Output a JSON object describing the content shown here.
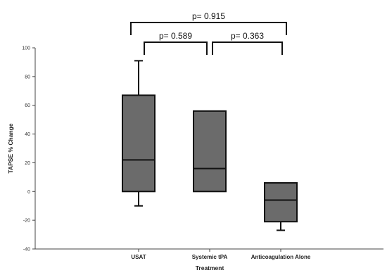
{
  "chart_data": {
    "type": "box",
    "xlabel": "Treatment",
    "ylabel": "TAPSE % Change",
    "ylim": [
      -40,
      100
    ],
    "yticks": [
      -40,
      -20,
      0,
      20,
      40,
      60,
      80,
      100
    ],
    "categories": [
      "USAT",
      "Systemic tPA",
      "Anticoagulation Alone"
    ],
    "boxes": [
      {
        "category": "USAT",
        "whisker_low": -10,
        "q1": 0,
        "median": 22,
        "q3": 67,
        "whisker_high": 91
      },
      {
        "category": "Systemic tPA",
        "whisker_low": 0,
        "q1": 0,
        "median": 16,
        "q3": 56,
        "whisker_high": 56
      },
      {
        "category": "Anticoagulation Alone",
        "whisker_low": -27,
        "q1": -21,
        "median": -6,
        "q3": 6,
        "whisker_high": 6
      }
    ],
    "comparisons": [
      {
        "from": "USAT",
        "to": "Anticoagulation Alone",
        "label": "p= 0.915",
        "level": 2
      },
      {
        "from": "USAT",
        "to": "Systemic tPA",
        "label": "p= 0.589",
        "level": 1
      },
      {
        "from": "Systemic tPA",
        "to": "Anticoagulation Alone",
        "label": "p= 0.363",
        "level": 1
      }
    ],
    "colors": {
      "box_fill": "#6b6b6b",
      "line": "#111111",
      "axis": "#444444"
    },
    "grid": false,
    "legend": "none"
  }
}
